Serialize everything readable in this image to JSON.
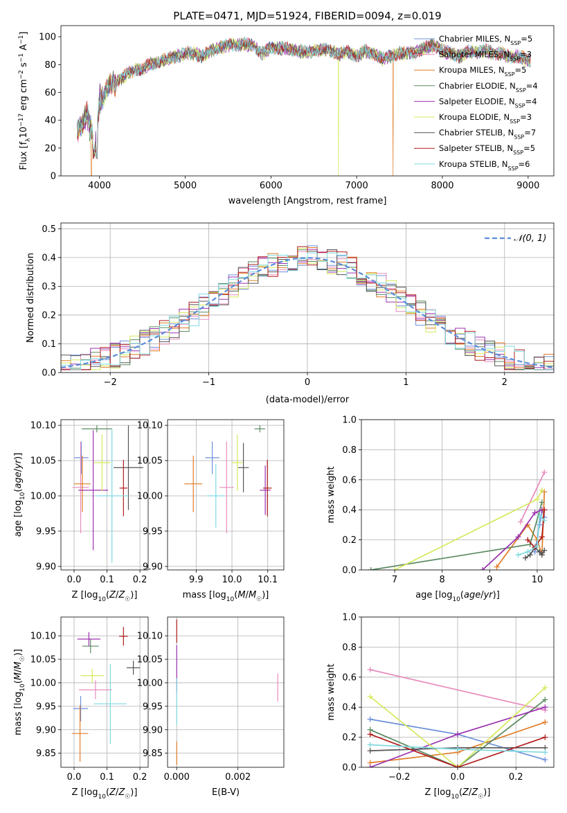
{
  "colors": {
    "Chabrier MILES": "#6b8fdc",
    "Salpeter MILES": "#e88bbd",
    "Kroupa MILES": "#e07b25",
    "Chabrier ELODIE": "#5a8a5f",
    "Salpeter ELODIE": "#9b30b0",
    "Kroupa ELODIE": "#d6e85a",
    "Chabrier STELIB": "#555555",
    "Salpeter STELIB": "#b01c1c",
    "Kroupa STELIB": "#7fd9e0"
  },
  "chart_data": [
    {
      "id": "spectrum",
      "type": "line",
      "title": "PLATE=0471, MJD=51924, FIBERID=0094, z=0.019",
      "xlabel": "wavelength [Angstrom, rest frame]",
      "ylabel": "Flux [f_λ10^-17 erg cm^-2 s^-1 A^-1]",
      "xlim": [
        3550,
        9300
      ],
      "ylim": [
        0,
        108
      ],
      "xticks": [
        4000,
        5000,
        6000,
        7000,
        8000,
        9000
      ],
      "yticks": [
        0,
        20,
        40,
        60,
        80,
        100
      ],
      "grid": false,
      "legend_position": "top-right",
      "spectrum_anchor_points": {
        "x": [
          3740,
          3800,
          3850,
          3900,
          3950,
          4000,
          4050,
          4100,
          4200,
          4300,
          4400,
          4500,
          4600,
          4700,
          4800,
          4900,
          5000,
          5100,
          5200,
          5300,
          5400,
          5500,
          5600,
          5700,
          5800,
          5900,
          6000,
          6100,
          6200,
          6300,
          6400,
          6500,
          6600,
          6700,
          6800,
          6900,
          7000,
          7100,
          7200,
          7300,
          7400,
          7500,
          7600,
          7700,
          7800,
          7900,
          8000,
          8100,
          8200,
          8300,
          8400,
          8500,
          8600,
          8700,
          8800,
          8900,
          9000,
          9030
        ],
        "y": [
          32,
          38,
          45,
          33,
          20,
          55,
          58,
          64,
          68,
          72,
          76,
          77,
          80,
          82,
          84,
          86,
          88,
          88,
          86,
          90,
          92,
          94,
          94,
          95,
          93,
          88,
          92,
          92,
          91,
          90,
          89,
          90,
          91,
          90,
          88,
          89,
          86,
          90,
          88,
          84,
          86,
          88,
          88,
          89,
          92,
          94,
          90,
          88,
          86,
          89,
          89,
          90,
          88,
          88,
          85,
          86,
          83,
          82
        ]
      },
      "dropouts": [
        {
          "x": 3905,
          "series": "Kroupa MILES"
        },
        {
          "x": 6790,
          "series": "Kroupa ELODIE"
        },
        {
          "x": 7425,
          "series": "Kroupa MILES"
        }
      ],
      "series": [
        {
          "name": "Chabrier MILES",
          "label": "Chabrier MILES, N",
          "sub": "SSP",
          "n": "=5"
        },
        {
          "name": "Salpeter MILES",
          "label": "Salpeter MILES, N",
          "sub": "SSP",
          "n": "=3"
        },
        {
          "name": "Kroupa MILES",
          "label": "Kroupa MILES, N",
          "sub": "SSP",
          "n": "=5"
        },
        {
          "name": "Chabrier ELODIE",
          "label": "Chabrier ELODIE, N",
          "sub": "SSP",
          "n": "=4"
        },
        {
          "name": "Salpeter ELODIE",
          "label": "Salpeter ELODIE, N",
          "sub": "SSP",
          "n": "=4"
        },
        {
          "name": "Kroupa ELODIE",
          "label": "Kroupa ELODIE, N",
          "sub": "SSP",
          "n": "=3"
        },
        {
          "name": "Chabrier STELIB",
          "label": "Chabrier STELIB, N",
          "sub": "SSP",
          "n": "=7"
        },
        {
          "name": "Salpeter STELIB",
          "label": "Salpeter STELIB, N",
          "sub": "SSP",
          "n": "=5"
        },
        {
          "name": "Kroupa STELIB",
          "label": "Kroupa STELIB, N",
          "sub": "SSP",
          "n": "=6"
        }
      ]
    },
    {
      "id": "residuals",
      "type": "line",
      "xlabel": "(data-model)/error",
      "ylabel": "Normed distribution",
      "xlim": [
        -2.5,
        2.5
      ],
      "ylim": [
        0,
        0.52
      ],
      "xticks": [
        -2,
        -1,
        0,
        1,
        2
      ],
      "yticks": [
        0.0,
        0.1,
        0.2,
        0.3,
        0.4,
        0.5
      ],
      "grid": true,
      "legend_position": "top-right",
      "reference_curve": {
        "name": "𝒩(0, 1)",
        "mean": 0,
        "sigma": 1
      },
      "bin_width": 0.1,
      "histogram_series": [
        "Chabrier MILES",
        "Salpeter MILES",
        "Kroupa MILES",
        "Chabrier ELODIE",
        "Salpeter ELODIE",
        "Kroupa ELODIE",
        "Chabrier STELIB",
        "Salpeter STELIB",
        "Kroupa STELIB"
      ]
    },
    {
      "id": "age_vs_Z",
      "type": "scatter",
      "xlabel": "Z [log10(Z/Z☉)]",
      "ylabel": "age  [log10(age/yr)]",
      "xlim": [
        -0.04,
        0.225
      ],
      "ylim": [
        9.895,
        10.108
      ],
      "xticks": [
        0.0,
        0.1,
        0.2
      ],
      "yticks": [
        9.9,
        9.95,
        10.0,
        10.05,
        10.1
      ],
      "grid": true,
      "points": [
        {
          "series": "Chabrier MILES",
          "x": 0.022,
          "y": 10.054,
          "xerr": 0.022,
          "yerr": 0.023
        },
        {
          "series": "Salpeter MILES",
          "x": 0.02,
          "y": 10.012,
          "xerr": 0.025,
          "yerr": 0.065
        },
        {
          "series": "Kroupa MILES",
          "x": 0.025,
          "y": 10.017,
          "xerr": 0.025,
          "yerr": 0.04
        },
        {
          "series": "Chabrier ELODIE",
          "x": 0.069,
          "y": 10.095,
          "xerr": 0.046,
          "yerr": 0.005
        },
        {
          "series": "Salpeter ELODIE",
          "x": 0.058,
          "y": 10.008,
          "xerr": 0.045,
          "yerr": 0.085
        },
        {
          "series": "Kroupa ELODIE",
          "x": 0.085,
          "y": 10.047,
          "xerr": 0.025,
          "yerr": 0.04
        },
        {
          "series": "Chabrier STELIB",
          "x": 0.165,
          "y": 10.04,
          "xerr": 0.045,
          "yerr": 0.06
        },
        {
          "series": "Salpeter STELIB",
          "x": 0.15,
          "y": 10.011,
          "xerr": 0.012,
          "yerr": 0.04
        },
        {
          "series": "Kroupa STELIB",
          "x": 0.115,
          "y": 10.0,
          "xerr": 0.05,
          "yerr": 0.095
        }
      ]
    },
    {
      "id": "age_vs_mass",
      "type": "scatter",
      "xlabel": "mass [log10(M/M☉)]",
      "ylabel": "",
      "xlim": [
        9.82,
        10.145
      ],
      "ylim": [
        9.895,
        10.108
      ],
      "xticks": [
        9.9,
        10.0,
        10.1
      ],
      "yticks": [
        9.9,
        9.95,
        10.0,
        10.05,
        10.1
      ],
      "grid": true,
      "points": [
        {
          "series": "Chabrier MILES",
          "x": 9.945,
          "y": 10.054,
          "xerr": 0.02,
          "yerr": 0.023
        },
        {
          "series": "Salpeter MILES",
          "x": 9.985,
          "y": 10.012,
          "xerr": 0.02,
          "yerr": 0.065
        },
        {
          "series": "Kroupa MILES",
          "x": 9.892,
          "y": 10.017,
          "xerr": 0.025,
          "yerr": 0.04
        },
        {
          "series": "Chabrier ELODIE",
          "x": 10.078,
          "y": 10.095,
          "xerr": 0.015,
          "yerr": 0.005
        },
        {
          "series": "Salpeter ELODIE",
          "x": 10.093,
          "y": 10.008,
          "xerr": 0.015,
          "yerr": 0.035
        },
        {
          "series": "Kroupa ELODIE",
          "x": 10.015,
          "y": 10.047,
          "xerr": 0.015,
          "yerr": 0.04
        },
        {
          "series": "Chabrier STELIB",
          "x": 10.032,
          "y": 10.04,
          "xerr": 0.015,
          "yerr": 0.035
        },
        {
          "series": "Salpeter STELIB",
          "x": 10.099,
          "y": 10.011,
          "xerr": 0.012,
          "yerr": 0.04
        },
        {
          "series": "Kroupa STELIB",
          "x": 9.955,
          "y": 10.0,
          "xerr": 0.025,
          "yerr": 0.045
        }
      ]
    },
    {
      "id": "weight_vs_age",
      "type": "line",
      "xlabel": "age  [log10(age/yr)]",
      "ylabel": "mass weight",
      "xlim": [
        6.3,
        10.35
      ],
      "ylim": [
        0,
        1.0
      ],
      "xticks": [
        7,
        8,
        9,
        10
      ],
      "yticks": [
        0.0,
        0.2,
        0.4,
        0.6,
        0.8,
        1.0
      ],
      "grid": true,
      "series": [
        {
          "name": "Chabrier MILES",
          "x": [
            9.95,
            10.05,
            10.1,
            10.15
          ],
          "y": [
            0.12,
            0.3,
            0.4,
            0.35
          ]
        },
        {
          "name": "Salpeter MILES",
          "x": [
            9.65,
            10.15
          ],
          "y": [
            0.32,
            0.65
          ]
        },
        {
          "name": "Kroupa MILES",
          "x": [
            9.15,
            9.8,
            10.0,
            10.1,
            10.15
          ],
          "y": [
            0.02,
            0.3,
            0.2,
            0.1,
            0.52
          ]
        },
        {
          "name": "Chabrier ELODIE",
          "x": [
            6.5,
            9.85,
            10.1
          ],
          "y": [
            0.0,
            0.17,
            0.45
          ]
        },
        {
          "name": "Salpeter ELODIE",
          "x": [
            8.85,
            9.6,
            9.95,
            10.1
          ],
          "y": [
            0.0,
            0.22,
            0.38,
            0.4
          ]
        },
        {
          "name": "Kroupa ELODIE",
          "x": [
            7.0,
            10.0,
            10.1
          ],
          "y": [
            0.0,
            0.47,
            0.53
          ]
        },
        {
          "name": "Chabrier STELIB",
          "x": [
            9.75,
            9.85,
            9.95,
            10.05,
            10.1,
            10.15
          ],
          "y": [
            0.08,
            0.1,
            0.15,
            0.12,
            0.1,
            0.13
          ]
        },
        {
          "name": "Salpeter STELIB",
          "x": [
            9.8,
            9.95,
            10.1,
            10.15
          ],
          "y": [
            0.2,
            0.15,
            0.22,
            0.4
          ]
        },
        {
          "name": "Kroupa STELIB",
          "x": [
            9.6,
            9.8,
            10.0,
            10.05,
            10.15
          ],
          "y": [
            0.1,
            0.12,
            0.16,
            0.36,
            0.33
          ]
        }
      ]
    },
    {
      "id": "mass_vs_Z",
      "type": "scatter",
      "xlabel": "Z [log10(Z/Z☉)]",
      "ylabel": "mass [log10(M/M☉)]",
      "xlim": [
        -0.04,
        0.225
      ],
      "ylim": [
        9.82,
        10.14
      ],
      "xticks": [
        0.0,
        0.1,
        0.2
      ],
      "yticks": [
        9.85,
        9.9,
        9.95,
        10.0,
        10.05,
        10.1
      ],
      "grid": true,
      "points": [
        {
          "series": "Chabrier MILES",
          "x": 0.02,
          "y": 9.945,
          "xerr": 0.022,
          "yerr": 0.027
        },
        {
          "series": "Salpeter MILES",
          "x": 0.065,
          "y": 9.985,
          "xerr": 0.05,
          "yerr": 0.02
        },
        {
          "series": "Kroupa MILES",
          "x": 0.018,
          "y": 9.892,
          "xerr": 0.025,
          "yerr": 0.06
        },
        {
          "series": "Chabrier ELODIE",
          "x": 0.05,
          "y": 10.078,
          "xerr": 0.025,
          "yerr": 0.015
        },
        {
          "series": "Salpeter ELODIE",
          "x": 0.045,
          "y": 10.093,
          "xerr": 0.035,
          "yerr": 0.015
        },
        {
          "series": "Kroupa ELODIE",
          "x": 0.055,
          "y": 10.015,
          "xerr": 0.035,
          "yerr": 0.015
        },
        {
          "series": "Chabrier STELIB",
          "x": 0.18,
          "y": 10.032,
          "xerr": 0.02,
          "yerr": 0.015
        },
        {
          "series": "Salpeter STELIB",
          "x": 0.15,
          "y": 10.099,
          "xerr": 0.013,
          "yerr": 0.02
        },
        {
          "series": "Kroupa STELIB",
          "x": 0.11,
          "y": 9.955,
          "xerr": 0.05,
          "yerr": 0.085
        }
      ]
    },
    {
      "id": "mass_vs_ebv",
      "type": "scatter",
      "xlabel": "E(B-V)",
      "ylabel": "",
      "xlim": [
        -0.0003,
        0.0035
      ],
      "ylim": [
        9.82,
        10.14
      ],
      "xticks": [
        0.0,
        0.002
      ],
      "xtick_labels": [
        "0.000",
        "0.002"
      ],
      "yticks": [
        9.85,
        9.9,
        9.95,
        10.0,
        10.05,
        10.1
      ],
      "grid": true,
      "points": [
        {
          "series": "Salpeter STELIB",
          "x": 0.0,
          "y": 10.11,
          "yerr": 0.025
        },
        {
          "series": "Salpeter ELODIE",
          "x": 0.0,
          "y": 10.03,
          "yerr": 0.05
        },
        {
          "series": "Kroupa STELIB",
          "x": 0.0,
          "y": 9.96,
          "yerr": 0.05
        },
        {
          "series": "Kroupa MILES",
          "x": 0.0,
          "y": 9.85,
          "yerr": 0.025
        },
        {
          "series": "Salpeter MILES",
          "x": 0.0033,
          "y": 9.99,
          "yerr": 0.03
        }
      ]
    },
    {
      "id": "weight_vs_Z",
      "type": "line",
      "xlabel": "Z [log10(Z/Z☉)]",
      "ylabel": "mass weight",
      "xlim": [
        -0.33,
        0.33
      ],
      "ylim": [
        0,
        1.0
      ],
      "xticks": [
        -0.2,
        0.0,
        0.2
      ],
      "xtick_labels": [
        "−0.2",
        "0.0",
        "0.2"
      ],
      "yticks": [
        0.0,
        0.2,
        0.4,
        0.6,
        0.8,
        1.0
      ],
      "grid": true,
      "series": [
        {
          "name": "Chabrier MILES",
          "x": [
            -0.3,
            0.0,
            0.3
          ],
          "y": [
            0.32,
            0.22,
            0.05
          ]
        },
        {
          "name": "Salpeter MILES",
          "x": [
            -0.3,
            0.3
          ],
          "y": [
            0.65,
            0.38
          ]
        },
        {
          "name": "Kroupa MILES",
          "x": [
            -0.3,
            0.0,
            0.3
          ],
          "y": [
            0.03,
            0.1,
            0.3
          ]
        },
        {
          "name": "Chabrier ELODIE",
          "x": [
            -0.3,
            0.0,
            0.3
          ],
          "y": [
            0.25,
            0.0,
            0.45
          ]
        },
        {
          "name": "Salpeter ELODIE",
          "x": [
            -0.3,
            0.0,
            0.3
          ],
          "y": [
            0.0,
            0.22,
            0.4
          ]
        },
        {
          "name": "Kroupa ELODIE",
          "x": [
            -0.3,
            0.0,
            0.3
          ],
          "y": [
            0.47,
            0.0,
            0.53
          ]
        },
        {
          "name": "Chabrier STELIB",
          "x": [
            -0.3,
            0.0,
            0.3
          ],
          "y": [
            0.11,
            0.13,
            0.13
          ]
        },
        {
          "name": "Salpeter STELIB",
          "x": [
            -0.3,
            0.0,
            0.3
          ],
          "y": [
            0.22,
            0.0,
            0.2
          ]
        },
        {
          "name": "Kroupa STELIB",
          "x": [
            -0.3,
            0.0,
            0.3
          ],
          "y": [
            0.15,
            0.12,
            0.1
          ]
        }
      ]
    }
  ]
}
